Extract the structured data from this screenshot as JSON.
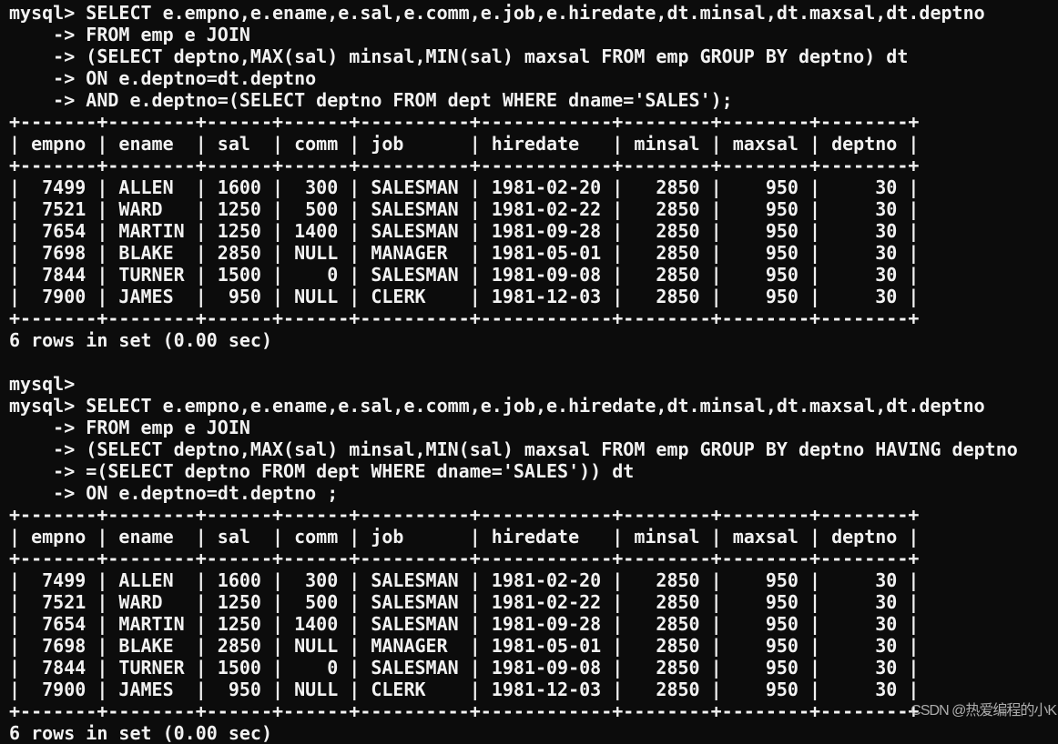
{
  "blocks": [
    {
      "query_lines": [
        "mysql> SELECT e.empno,e.ename,e.sal,e.comm,e.job,e.hiredate,dt.minsal,dt.maxsal,dt.deptno",
        "    -> FROM emp e JOIN",
        "    -> (SELECT deptno,MAX(sal) minsal,MIN(sal) maxsal FROM emp GROUP BY deptno) dt",
        "    -> ON e.deptno=dt.deptno",
        "    -> AND e.deptno=(SELECT deptno FROM dept WHERE dname='SALES');"
      ],
      "after_lines": [
        "6 rows in set (0.00 sec)",
        "",
        "mysql>"
      ]
    },
    {
      "query_lines": [
        "mysql> SELECT e.empno,e.ename,e.sal,e.comm,e.job,e.hiredate,dt.minsal,dt.maxsal,dt.deptno",
        "    -> FROM emp e JOIN",
        "    -> (SELECT deptno,MAX(sal) minsal,MIN(sal) maxsal FROM emp GROUP BY deptno HAVING deptno",
        "    -> =(SELECT deptno FROM dept WHERE dname='SALES')) dt",
        "    -> ON e.deptno=dt.deptno ;"
      ],
      "after_lines": [
        "6 rows in set (0.00 sec)"
      ]
    }
  ],
  "table": {
    "headers": [
      "empno",
      "ename",
      "sal",
      "comm",
      "job",
      "hiredate",
      "minsal",
      "maxsal",
      "deptno"
    ],
    "align": [
      "r",
      "l",
      "r",
      "r",
      "l",
      "l",
      "r",
      "r",
      "r"
    ],
    "rows": [
      [
        "7499",
        "ALLEN",
        "1600",
        "300",
        "SALESMAN",
        "1981-02-20",
        "2850",
        "950",
        "30"
      ],
      [
        "7521",
        "WARD",
        "1250",
        "500",
        "SALESMAN",
        "1981-02-22",
        "2850",
        "950",
        "30"
      ],
      [
        "7654",
        "MARTIN",
        "1250",
        "1400",
        "SALESMAN",
        "1981-09-28",
        "2850",
        "950",
        "30"
      ],
      [
        "7698",
        "BLAKE",
        "2850",
        "NULL",
        "MANAGER",
        "1981-05-01",
        "2850",
        "950",
        "30"
      ],
      [
        "7844",
        "TURNER",
        "1500",
        "0",
        "SALESMAN",
        "1981-09-08",
        "2850",
        "950",
        "30"
      ],
      [
        "7900",
        "JAMES",
        "950",
        "NULL",
        "CLERK",
        "1981-12-03",
        "2850",
        "950",
        "30"
      ]
    ]
  },
  "watermark": "CSDN @热爱编程的小K",
  "colors": {
    "background": "#0c0c0c",
    "text": "#f2f2f2"
  }
}
